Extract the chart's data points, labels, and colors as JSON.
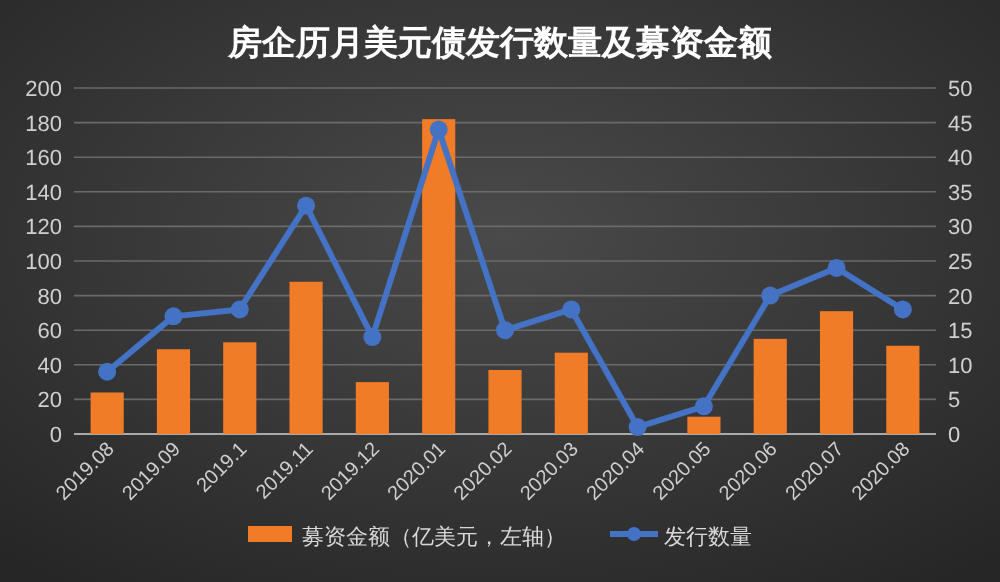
{
  "chart_data": {
    "type": "bar",
    "title": "房企历月美元债发行数量及募资金额",
    "categories": [
      "2019.08",
      "2019.09",
      "2019.1",
      "2019.11",
      "2019.12",
      "2020.01",
      "2020.02",
      "2020.03",
      "2020.04",
      "2020.05",
      "2020.06",
      "2020.07",
      "2020.08"
    ],
    "series": [
      {
        "name": "募资金额（亿美元，左轴）",
        "color": "#f07c28",
        "values": [
          24,
          49,
          53,
          88,
          30,
          182,
          37,
          47,
          0,
          10,
          55,
          71,
          51
        ]
      },
      {
        "name": "发行数量",
        "type": "line",
        "axis": "y2",
        "marker": "circle",
        "color": "#4472c4",
        "values": [
          9,
          17,
          18,
          33,
          14,
          44,
          15,
          18,
          1,
          4,
          20,
          24,
          18
        ]
      }
    ],
    "ylim": [
      0,
      200
    ],
    "yticks": [
      0,
      20,
      40,
      60,
      80,
      100,
      120,
      140,
      160,
      180,
      200
    ],
    "y2lim": [
      0,
      50
    ],
    "y2ticks": [
      0,
      5,
      10,
      15,
      20,
      25,
      30,
      35,
      40,
      45,
      50
    ],
    "grid": "y",
    "legend": "bottom"
  }
}
